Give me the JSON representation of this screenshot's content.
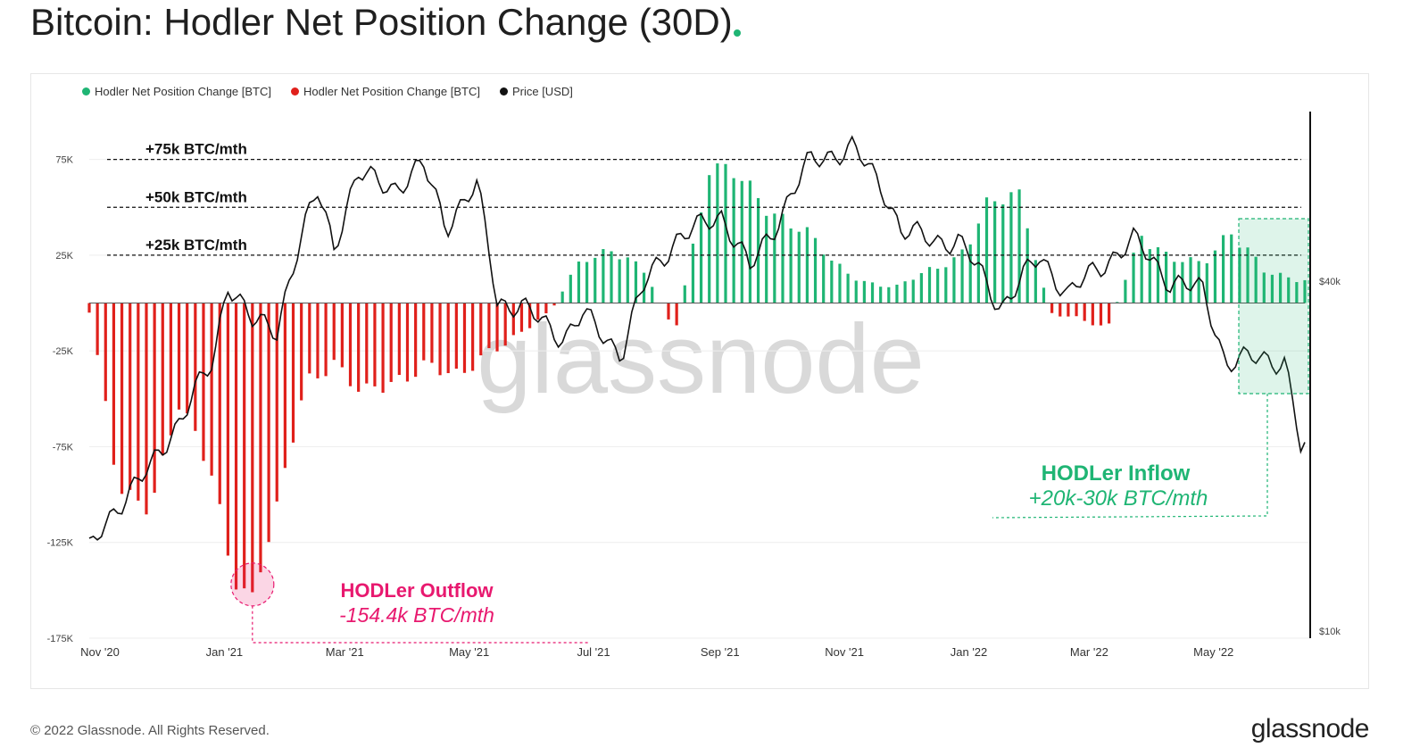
{
  "title": "Bitcoin: Hodler Net Position Change (30D)",
  "footer": {
    "copyright": "© 2022 Glassnode. All Rights Reserved.",
    "logo": "glassnode"
  },
  "watermark": "glassnode",
  "colors": {
    "inflow": "#1fb574",
    "outflow": "#e0201b",
    "price": "#111111",
    "outflow_annotation": "#e8196f",
    "inflow_annotation": "#1fb574"
  },
  "chart_data": {
    "type": "bar",
    "title": "Bitcoin: Hodler Net Position Change (30D)",
    "legend": [
      {
        "name": "Hodler Net Position Change [BTC]",
        "color": "#1fb574"
      },
      {
        "name": "Hodler Net Position Change [BTC]",
        "color": "#e0201b"
      },
      {
        "name": "Price [USD]",
        "color": "#111111"
      }
    ],
    "legend_position": "top-left",
    "x_tick_labels": [
      "Nov '20",
      "Jan '21",
      "Mar '21",
      "May '21",
      "Jul '21",
      "Sep '21",
      "Nov '21",
      "Jan '22",
      "Mar '22",
      "May '22"
    ],
    "x_range": [
      "2020-11-01",
      "2022-06-20"
    ],
    "y_left": {
      "ticks": [
        75000,
        25000,
        -25000,
        -75000,
        -125000,
        -175000
      ],
      "tick_labels": [
        "75K",
        "25K",
        "-25K",
        "-75K",
        "-125K",
        "-175K"
      ],
      "range": [
        -175000,
        100000
      ]
    },
    "y_right": {
      "scale": "log",
      "tick_values": [
        40000,
        10000
      ],
      "tick_labels": [
        "$40k",
        "$10k"
      ]
    },
    "reference_lines": [
      {
        "value": 75000,
        "label": "+75k BTC/mth"
      },
      {
        "value": 50000,
        "label": "+50k BTC/mth"
      },
      {
        "value": 25000,
        "label": "+25k BTC/mth"
      }
    ],
    "series": [
      {
        "name": "Hodler Net Position Change [BTC]",
        "kind": "bar",
        "x": [
          "2020-11-01",
          "2020-11-15",
          "2020-12-01",
          "2020-12-15",
          "2021-01-01",
          "2021-01-10",
          "2021-01-20",
          "2021-02-01",
          "2021-02-15",
          "2021-03-01",
          "2021-03-15",
          "2021-04-01",
          "2021-04-15",
          "2021-05-01",
          "2021-05-15",
          "2021-06-01",
          "2021-06-15",
          "2021-07-01",
          "2021-07-15",
          "2021-08-01",
          "2021-08-15",
          "2021-09-01",
          "2021-09-15",
          "2021-10-01",
          "2021-10-15",
          "2021-11-01",
          "2021-11-15",
          "2021-12-01",
          "2021-12-15",
          "2022-01-01",
          "2022-01-15",
          "2022-02-01",
          "2022-02-15",
          "2022-03-01",
          "2022-03-15",
          "2022-04-01",
          "2022-04-15",
          "2022-05-01",
          "2022-05-15",
          "2022-06-01",
          "2022-06-15"
        ],
        "values": [
          -5000,
          -95000,
          -105000,
          -55000,
          -90000,
          -140000,
          -154400,
          -110000,
          -40000,
          -30000,
          -50000,
          -40000,
          -30000,
          -42000,
          -25000,
          -15000,
          -5000,
          25000,
          28000,
          15000,
          -15000,
          70000,
          65000,
          50000,
          40000,
          20000,
          12000,
          8000,
          15000,
          25000,
          50000,
          55000,
          -5000,
          -8000,
          -15000,
          38000,
          22000,
          20000,
          40000,
          15000,
          12000
        ]
      },
      {
        "name": "Price [USD]",
        "kind": "line",
        "x": [
          "2020-11-01",
          "2020-11-15",
          "2020-12-01",
          "2020-12-15",
          "2021-01-01",
          "2021-01-08",
          "2021-01-20",
          "2021-02-01",
          "2021-02-21",
          "2021-03-01",
          "2021-03-13",
          "2021-04-01",
          "2021-04-14",
          "2021-04-25",
          "2021-05-10",
          "2021-05-20",
          "2021-06-01",
          "2021-06-22",
          "2021-07-01",
          "2021-07-20",
          "2021-08-01",
          "2021-08-15",
          "2021-09-07",
          "2021-09-21",
          "2021-10-01",
          "2021-10-20",
          "2021-11-10",
          "2021-11-26",
          "2021-12-04",
          "2021-12-20",
          "2022-01-01",
          "2022-01-22",
          "2022-02-10",
          "2022-02-24",
          "2022-03-28",
          "2022-04-15",
          "2022-05-01",
          "2022-05-12",
          "2022-05-28",
          "2022-06-10",
          "2022-06-18"
        ],
        "values": [
          13700,
          16500,
          19000,
          23000,
          29000,
          40000,
          34000,
          33000,
          57000,
          46000,
          61000,
          58000,
          63000,
          50000,
          58000,
          37000,
          36000,
          32000,
          35000,
          30000,
          40000,
          47000,
          52000,
          42000,
          48000,
          64000,
          68000,
          57000,
          49000,
          47000,
          47000,
          36000,
          44000,
          38000,
          47000,
          40000,
          38500,
          29000,
          29500,
          29200,
          20500
        ]
      }
    ],
    "annotations": [
      {
        "title": "HODLer Outflow",
        "value": "-154.4k  BTC/mth"
      },
      {
        "title": "HODLer Inflow",
        "value": "+20k-30k BTC/mth"
      }
    ]
  }
}
